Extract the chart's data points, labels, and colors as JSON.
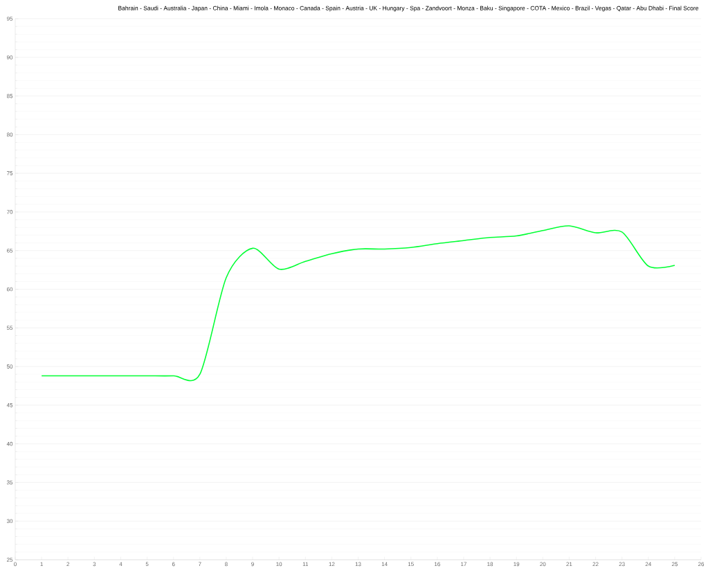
{
  "chart_data": {
    "type": "line",
    "title": "Bahrain - Saudi - Australia -  Japan  -  China  -  Miami  -  Imola  - Monaco - Canada - Spain -   Austria    -  UK  -  Hungary  - Spa - Zandvoort - Monza - Baku - Singapore - COTA - Mexico - Brazil -  Vegas  - Qatar - Abu Dhabi - Final Score",
    "x": [
      1,
      2,
      3,
      4,
      5,
      6,
      7,
      8,
      9,
      10,
      11,
      12,
      13,
      14,
      15,
      16,
      17,
      18,
      19,
      20,
      21,
      22,
      23,
      24,
      25
    ],
    "series": [
      {
        "color": "#00ff33",
        "values": [
          48.8,
          48.8,
          48.8,
          48.8,
          48.8,
          48.8,
          49,
          61.5,
          65.3,
          62.6,
          63.6,
          64.6,
          65.2,
          65.2,
          65.4,
          65.9,
          66.3,
          66.7,
          66.9,
          67.6,
          68.2,
          67.3,
          67.4,
          63.0,
          63.1
        ]
      }
    ],
    "xlim": [
      0,
      26
    ],
    "xticks": [
      0,
      1,
      2,
      3,
      4,
      5,
      6,
      7,
      8,
      9,
      10,
      11,
      12,
      13,
      14,
      15,
      16,
      17,
      18,
      19,
      20,
      21,
      22,
      23,
      24,
      25,
      26
    ],
    "ylim": [
      25,
      95
    ],
    "yticks": [
      25,
      30,
      35,
      40,
      45,
      50,
      55,
      60,
      65,
      70,
      75,
      80,
      85,
      90,
      95
    ],
    "grid": "y",
    "marker": "none"
  }
}
